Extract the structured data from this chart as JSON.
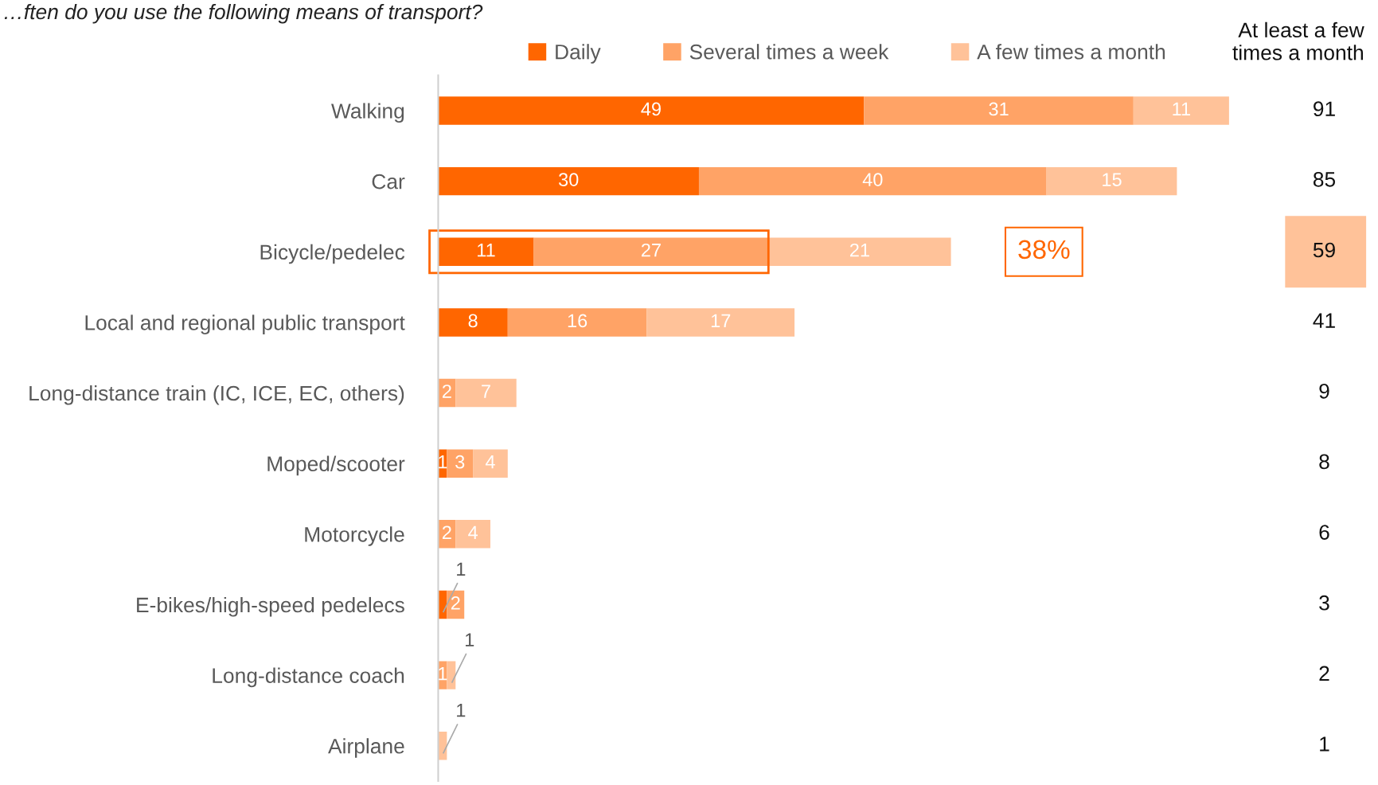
{
  "chart_data": {
    "type": "bar",
    "orientation": "horizontal",
    "stacked": true,
    "title": "…ften do you use the following means of transport?",
    "categories": [
      "Walking",
      "Car",
      "Bicycle/pedelec",
      "Local and regional public transport",
      "Long-distance train (IC, ICE, EC, others)",
      "Moped/scooter",
      "Motorcycle",
      "E-bikes/high-speed pedelecs",
      "Long-distance coach",
      "Airplane"
    ],
    "series": [
      {
        "name": "Daily",
        "color": "#ff6600",
        "values": [
          49,
          30,
          11,
          8,
          0,
          1,
          0,
          1,
          0,
          0
        ],
        "value_labels": [
          "49",
          "30",
          "11",
          "8",
          null,
          "1",
          null,
          "1",
          null,
          null
        ]
      },
      {
        "name": "Several times a week",
        "color": "#ffa366",
        "values": [
          31,
          40,
          27,
          16,
          2,
          3,
          2,
          2,
          1,
          0
        ],
        "value_labels": [
          "31",
          "40",
          "27",
          "16",
          "2",
          "3",
          "2",
          "2",
          "1",
          null
        ]
      },
      {
        "name": "A few times a month",
        "color": "#ffc299",
        "values": [
          11,
          15,
          21,
          17,
          7,
          4,
          4,
          0,
          1,
          1
        ],
        "value_labels": [
          "11",
          "15",
          "21",
          "17",
          "7",
          "4",
          "4",
          null,
          "1",
          "1"
        ]
      }
    ],
    "annotations": [
      "At least a few\ntimes a month",
      "38%",
      "91",
      "85",
      "59",
      "41",
      "9",
      "8",
      "6",
      "3",
      "2",
      "1"
    ],
    "legend": "top",
    "grid": false
  }
}
